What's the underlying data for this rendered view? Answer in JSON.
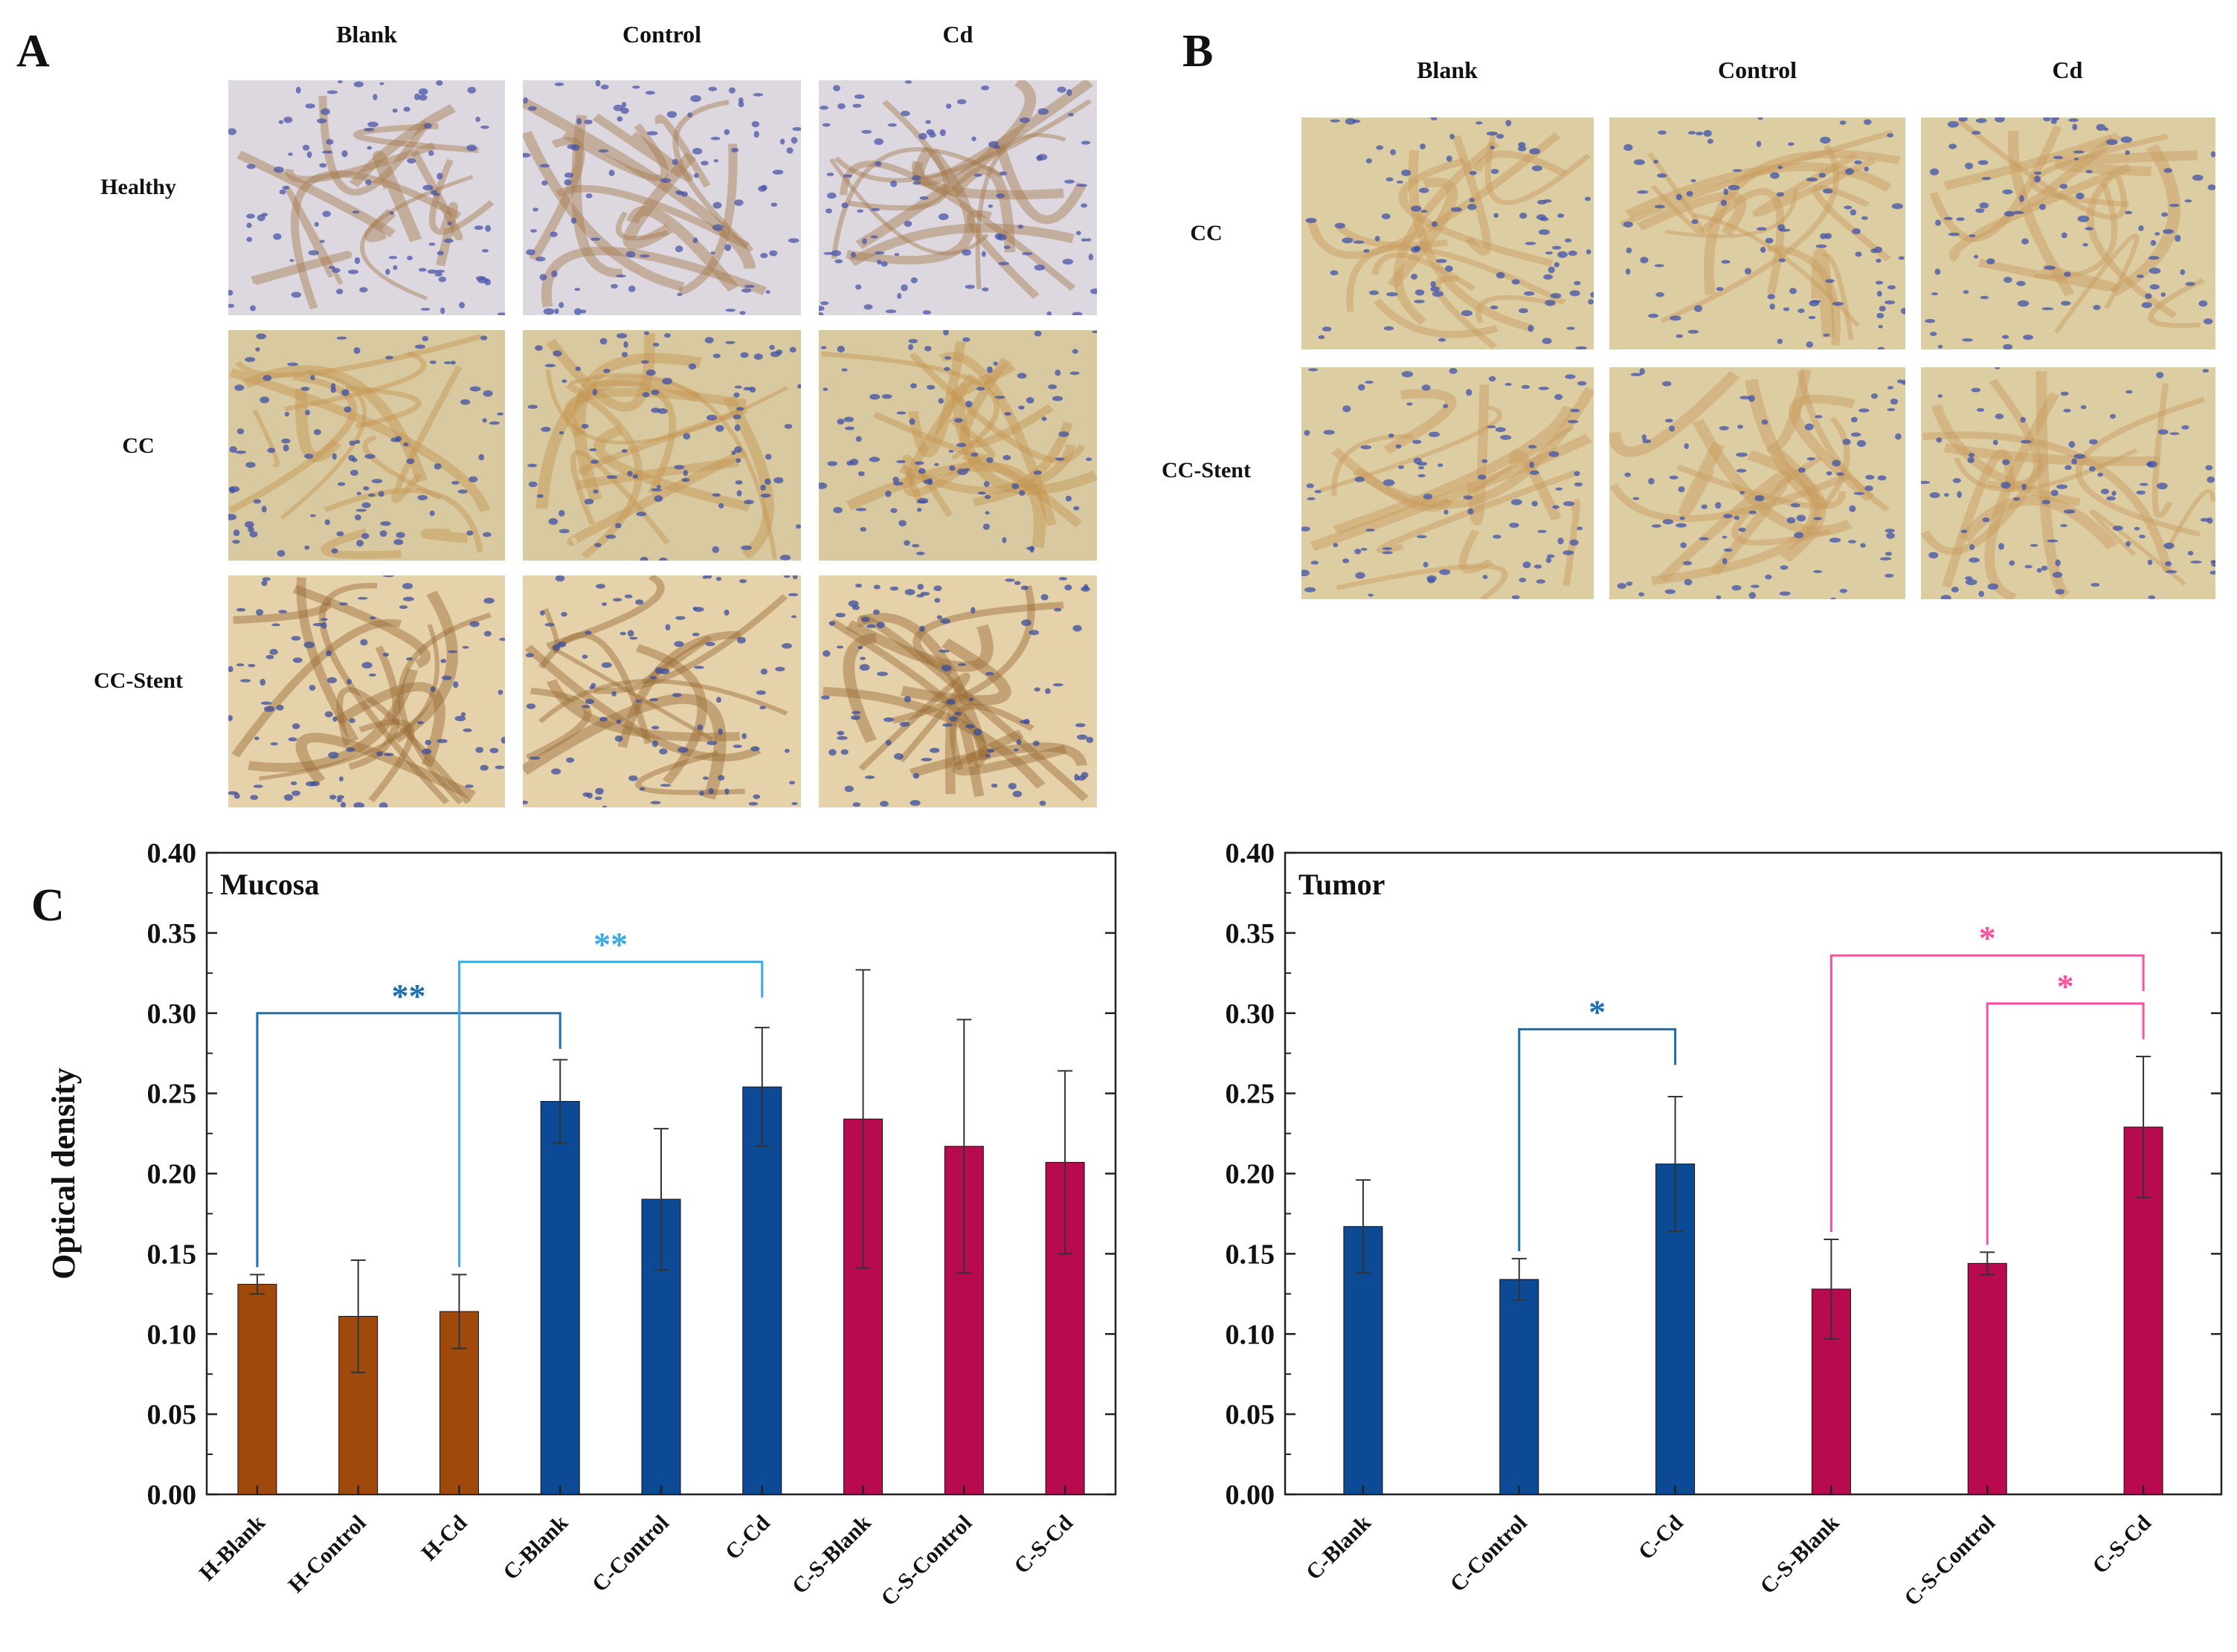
{
  "panels": {
    "a": {
      "letter": "A",
      "columns": [
        "Blank",
        "Control",
        "Cd"
      ],
      "rows": [
        "Healthy",
        "CC",
        "CC-Stent"
      ]
    },
    "b": {
      "letter": "B",
      "columns": [
        "Blank",
        "Control",
        "Cd"
      ],
      "rows": [
        "CC",
        "CC-Stent"
      ]
    },
    "c": {
      "letter": "C"
    }
  },
  "tile_styles": {
    "healthy": {
      "bg": "#ddd8e0",
      "cell": "#4a55a8",
      "stain": "#a57b4c"
    },
    "tumor": {
      "bg": "#d9c9a0",
      "cell": "#3e4fa5",
      "stain": "#c49550"
    },
    "stent": {
      "bg": "#e6d2aa",
      "cell": "#3a4c9c",
      "stain": "#9a6a35"
    },
    "b_tumor": {
      "bg": "#dccda3",
      "cell": "#3f52ab",
      "stain": "#c79c5e"
    }
  },
  "chart_data": [
    {
      "type": "bar",
      "title": "Mucosa",
      "ylabel": "Optical density",
      "ylim": [
        0,
        0.4
      ],
      "yticks": [
        "0.00",
        "0.05",
        "0.10",
        "0.15",
        "0.20",
        "0.25",
        "0.30",
        "0.35",
        "0.40"
      ],
      "categories": [
        "H-Blank",
        "H-Control",
        "H-Cd",
        "C-Blank",
        "C-Control",
        "C-Cd",
        "C-S-Blank",
        "C-S-Control",
        "C-S-Cd"
      ],
      "values": [
        0.131,
        0.111,
        0.114,
        0.245,
        0.184,
        0.254,
        0.234,
        0.217,
        0.207
      ],
      "errors": [
        0.006,
        0.035,
        0.023,
        0.026,
        0.044,
        0.037,
        0.093,
        0.079,
        0.057
      ],
      "colors": [
        "#a0490d",
        "#a0490d",
        "#a0490d",
        "#0c4a95",
        "#0c4a95",
        "#0c4a95",
        "#b80a4f",
        "#b80a4f",
        "#b80a4f"
      ],
      "significance": [
        {
          "from": 0,
          "to": 3,
          "label": "**",
          "color": "#1b6fae",
          "level": 0.3
        },
        {
          "from": 2,
          "to": 5,
          "label": "**",
          "color": "#3aaae6",
          "level": 0.332
        }
      ]
    },
    {
      "type": "bar",
      "title": "Tumor",
      "ylim": [
        0,
        0.4
      ],
      "yticks": [
        "0.00",
        "0.05",
        "0.10",
        "0.15",
        "0.20",
        "0.25",
        "0.30",
        "0.35",
        "0.40"
      ],
      "categories": [
        "C-Blank",
        "C-Control",
        "C-Cd",
        "C-S-Blank",
        "C-S-Control",
        "C-S-Cd"
      ],
      "values": [
        0.167,
        0.134,
        0.206,
        0.128,
        0.144,
        0.229
      ],
      "errors": [
        0.029,
        0.013,
        0.042,
        0.031,
        0.007,
        0.044
      ],
      "colors": [
        "#0c4a95",
        "#0c4a95",
        "#0c4a95",
        "#b80a4f",
        "#b80a4f",
        "#b80a4f"
      ],
      "significance": [
        {
          "from": 1,
          "to": 2,
          "label": "*",
          "color": "#1b6fae",
          "level": 0.29
        },
        {
          "from": 4,
          "to": 5,
          "label": "*",
          "color": "#ff4fa0",
          "level": 0.306
        },
        {
          "from": 3,
          "to": 5,
          "label": "*",
          "color": "#ff4fa0",
          "level": 0.336
        }
      ]
    }
  ]
}
